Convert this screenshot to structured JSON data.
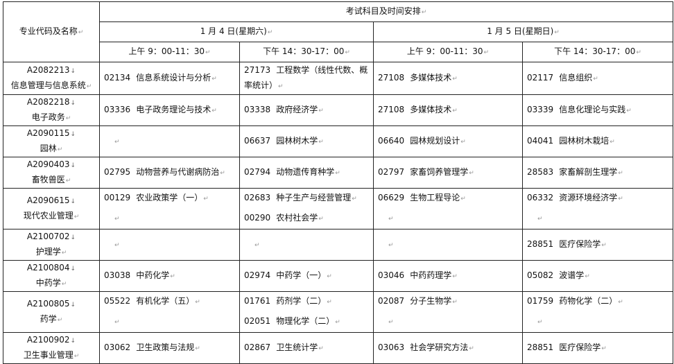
{
  "header": {
    "major_label": "专业代码及名称",
    "schedule_title": "考试科目及时间安排",
    "days": [
      "1 月 4 日(星期六)",
      "1 月 5 日(星期日)"
    ],
    "sessions": [
      "上午 9：00-11：30",
      "下午 14：30-17：00",
      "上午 9：00-11：30",
      "下午 14：30-17：00"
    ]
  },
  "rows": [
    {
      "code": "A2082213",
      "name": "信息管理与信息系统",
      "cells": [
        [
          {
            "code": "02134",
            "name": "信息系统设计与分析"
          }
        ],
        [
          {
            "code": "27173",
            "name": "工程数学（线性代数、概率统计）"
          }
        ],
        [
          {
            "code": "27108",
            "name": "多媒体技术"
          }
        ],
        [
          {
            "code": "02117",
            "name": "信息组织"
          }
        ]
      ]
    },
    {
      "code": "A2082218",
      "name": "电子政务",
      "cells": [
        [
          {
            "code": "03336",
            "name": "电子政务理论与技术"
          }
        ],
        [
          {
            "code": "03338",
            "name": "政府经济学"
          }
        ],
        [
          {
            "code": "27108",
            "name": "多媒体技术"
          }
        ],
        [
          {
            "code": "03339",
            "name": "信息化理论与实践"
          }
        ]
      ]
    },
    {
      "code": "A2090115",
      "name": "园林",
      "cells": [
        [],
        [
          {
            "code": "06637",
            "name": "园林树木学"
          }
        ],
        [
          {
            "code": "06640",
            "name": "园林规划设计"
          }
        ],
        [
          {
            "code": "04041",
            "name": "园林树木栽培"
          }
        ]
      ]
    },
    {
      "code": "A2090403",
      "name": "畜牧兽医",
      "cells": [
        [
          {
            "code": "02795",
            "name": "动物营养与代谢病防治"
          }
        ],
        [
          {
            "code": "02794",
            "name": "动物遗传育种学"
          }
        ],
        [
          {
            "code": "02797",
            "name": "家畜饲养管理学"
          }
        ],
        [
          {
            "code": "28583",
            "name": "家畜解剖生理学"
          }
        ]
      ]
    },
    {
      "code": "A2090615",
      "name": "现代农业管理",
      "cells": [
        [
          {
            "code": "00129",
            "name": "农业政策学（一）"
          }
        ],
        [
          {
            "code": "02683",
            "name": "种子生产与经营管理"
          },
          {
            "code": "00290",
            "name": "农村社会学"
          }
        ],
        [
          {
            "code": "06629",
            "name": "生物工程导论"
          }
        ],
        [
          {
            "code": "06332",
            "name": "资源环境经济学"
          }
        ]
      ]
    },
    {
      "code": "A2100702",
      "name": "护理学",
      "cells": [
        [],
        [],
        [],
        [
          {
            "code": "28851",
            "name": "医疗保险学"
          }
        ]
      ]
    },
    {
      "code": "A2100804",
      "name": "中药学",
      "cells": [
        [
          {
            "code": "03038",
            "name": "中药化学"
          }
        ],
        [
          {
            "code": "02974",
            "name": "中药学（一）"
          }
        ],
        [
          {
            "code": "03046",
            "name": "中药药理学"
          }
        ],
        [
          {
            "code": "05082",
            "name": "波谱学"
          }
        ]
      ]
    },
    {
      "code": "A2100805",
      "name": "药学",
      "cells": [
        [
          {
            "code": "05522",
            "name": "有机化学（五）"
          }
        ],
        [
          {
            "code": "01761",
            "name": "药剂学（二）"
          },
          {
            "code": "02051",
            "name": "物理化学（二）"
          }
        ],
        [
          {
            "code": "02087",
            "name": "分子生物学"
          }
        ],
        [
          {
            "code": "01759",
            "name": "药物化学（二）"
          }
        ]
      ]
    },
    {
      "code": "A2100902",
      "name": "卫生事业管理",
      "cells": [
        [
          {
            "code": "03062",
            "name": "卫生政策与法规"
          }
        ],
        [
          {
            "code": "02867",
            "name": "卫生统计学"
          }
        ],
        [
          {
            "code": "03063",
            "name": "社会学研究方法"
          }
        ],
        [
          {
            "code": "28851",
            "name": "医疗保险学"
          }
        ]
      ]
    }
  ]
}
